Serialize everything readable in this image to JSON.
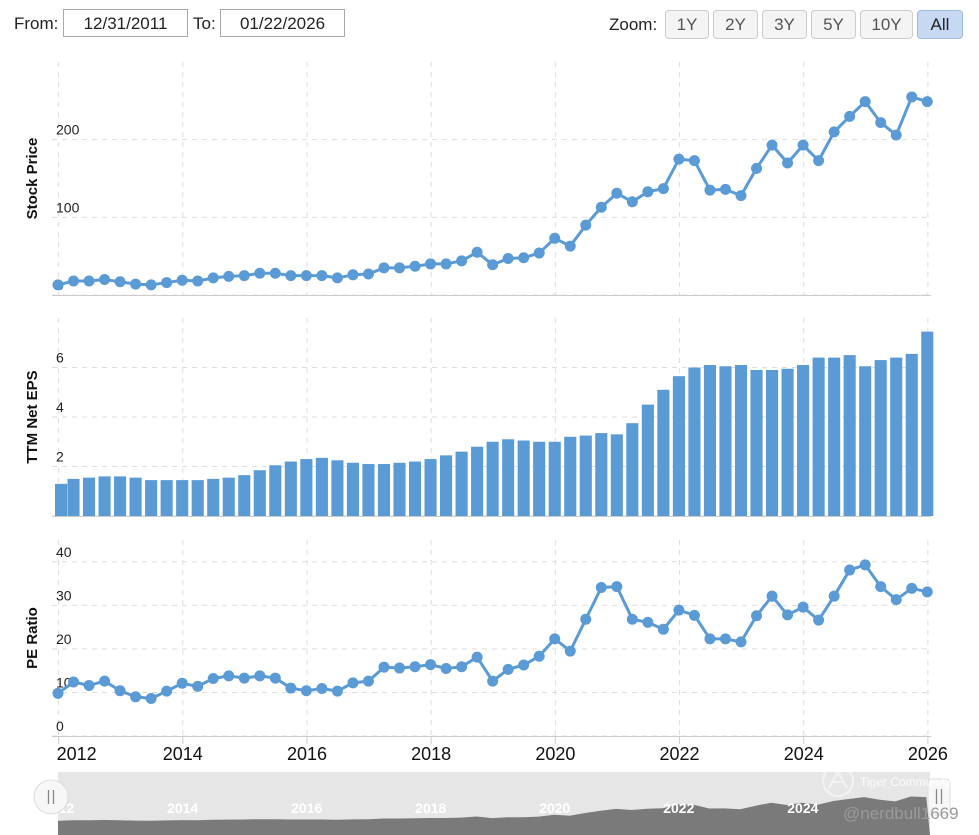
{
  "header": {
    "from_label": "From:",
    "from_value": "12/31/2011",
    "to_label": "To:",
    "to_value": "01/22/2026",
    "zoom_label": "Zoom:",
    "zoom_options": [
      "1Y",
      "2Y",
      "3Y",
      "5Y",
      "10Y",
      "All"
    ],
    "zoom_selected": "All"
  },
  "navigator": {
    "labels": [
      "2012",
      "2014",
      "2016",
      "2018",
      "2020",
      "2022",
      "2024"
    ]
  },
  "watermark": {
    "brand": "Tiger Community",
    "user": "@nerdbull1669"
  },
  "colors": {
    "series": "#5b9bd5",
    "grid": "#dddddd",
    "navigator_fill": "#e6e6e6",
    "navigator_area": "#7a7a7a",
    "active_zoom": "#c7d9f2"
  },
  "chart_data": [
    {
      "type": "line",
      "ylabel": "Stock Price",
      "ylim": [
        0,
        300
      ],
      "yticks": [
        0,
        100,
        200
      ],
      "grid": true,
      "x": [
        2011.99,
        2012.24,
        2012.49,
        2012.74,
        2012.99,
        2013.24,
        2013.49,
        2013.74,
        2013.99,
        2014.24,
        2014.49,
        2014.74,
        2014.99,
        2015.24,
        2015.49,
        2015.74,
        2015.99,
        2016.24,
        2016.49,
        2016.74,
        2016.99,
        2017.24,
        2017.49,
        2017.74,
        2017.99,
        2018.24,
        2018.49,
        2018.74,
        2018.99,
        2019.24,
        2019.49,
        2019.74,
        2019.99,
        2020.24,
        2020.49,
        2020.74,
        2020.99,
        2021.24,
        2021.49,
        2021.74,
        2021.99,
        2022.24,
        2022.49,
        2022.74,
        2022.99,
        2023.24,
        2023.49,
        2023.74,
        2023.99,
        2024.24,
        2024.49,
        2024.74,
        2024.99,
        2025.24,
        2025.49,
        2025.74,
        2025.99
      ],
      "values": [
        13,
        18,
        18,
        20,
        17,
        14,
        13,
        16,
        19,
        18,
        22,
        24,
        25,
        28,
        28,
        25,
        25,
        25,
        22,
        26,
        27,
        35,
        35,
        37,
        40,
        40,
        44,
        55,
        39,
        47,
        48,
        54,
        73,
        63,
        90,
        113,
        131,
        120,
        133,
        137,
        175,
        173,
        135,
        136,
        128,
        163,
        193,
        170,
        193,
        173,
        210,
        230,
        249,
        222,
        206,
        255,
        249
      ]
    },
    {
      "type": "bar",
      "ylabel": "TTM Net EPS",
      "ylim": [
        0,
        8
      ],
      "yticks": [
        0,
        2,
        4,
        6
      ],
      "grid": true,
      "x": [
        2011.99,
        2012.24,
        2012.49,
        2012.74,
        2012.99,
        2013.24,
        2013.49,
        2013.74,
        2013.99,
        2014.24,
        2014.49,
        2014.74,
        2014.99,
        2015.24,
        2015.49,
        2015.74,
        2015.99,
        2016.24,
        2016.49,
        2016.74,
        2016.99,
        2017.24,
        2017.49,
        2017.74,
        2017.99,
        2018.24,
        2018.49,
        2018.74,
        2018.99,
        2019.24,
        2019.49,
        2019.74,
        2019.99,
        2020.24,
        2020.49,
        2020.74,
        2020.99,
        2021.24,
        2021.49,
        2021.74,
        2021.99,
        2022.24,
        2022.49,
        2022.74,
        2022.99,
        2023.24,
        2023.49,
        2023.74,
        2023.99,
        2024.24,
        2024.49,
        2024.74,
        2024.99,
        2025.24,
        2025.49,
        2025.74,
        2025.99
      ],
      "values": [
        1.3,
        1.5,
        1.55,
        1.6,
        1.6,
        1.55,
        1.45,
        1.45,
        1.45,
        1.45,
        1.5,
        1.55,
        1.65,
        1.85,
        2.05,
        2.2,
        2.3,
        2.35,
        2.25,
        2.15,
        2.1,
        2.1,
        2.15,
        2.2,
        2.3,
        2.45,
        2.6,
        2.8,
        3.0,
        3.1,
        3.05,
        3.0,
        3.0,
        3.2,
        3.25,
        3.35,
        3.3,
        3.75,
        4.5,
        5.1,
        5.65,
        6.0,
        6.1,
        6.05,
        6.1,
        5.9,
        5.9,
        5.95,
        6.1,
        6.4,
        6.4,
        6.5,
        6.05,
        6.3,
        6.4,
        6.55,
        7.45
      ]
    },
    {
      "type": "line",
      "ylabel": "PE Ratio",
      "ylim": [
        0,
        45
      ],
      "yticks": [
        0,
        10,
        20,
        30,
        40
      ],
      "grid": true,
      "x": [
        2011.99,
        2012.24,
        2012.49,
        2012.74,
        2012.99,
        2013.24,
        2013.49,
        2013.74,
        2013.99,
        2014.24,
        2014.49,
        2014.74,
        2014.99,
        2015.24,
        2015.49,
        2015.74,
        2015.99,
        2016.24,
        2016.49,
        2016.74,
        2016.99,
        2017.24,
        2017.49,
        2017.74,
        2017.99,
        2018.24,
        2018.49,
        2018.74,
        2018.99,
        2019.24,
        2019.49,
        2019.74,
        2019.99,
        2020.24,
        2020.49,
        2020.74,
        2020.99,
        2021.24,
        2021.49,
        2021.74,
        2021.99,
        2022.24,
        2022.49,
        2022.74,
        2022.99,
        2023.24,
        2023.49,
        2023.74,
        2023.99,
        2024.24,
        2024.49,
        2024.74,
        2024.99,
        2025.24,
        2025.49,
        2025.74,
        2025.99
      ],
      "values": [
        9.8,
        12.4,
        11.6,
        12.6,
        10.4,
        9.0,
        8.6,
        10.3,
        12.1,
        11.4,
        13.2,
        13.8,
        13.3,
        13.8,
        13.3,
        11.0,
        10.4,
        10.9,
        10.3,
        12.2,
        12.6,
        15.8,
        15.6,
        15.9,
        16.4,
        15.5,
        15.9,
        18.1,
        12.6,
        15.3,
        16.3,
        18.3,
        22.3,
        19.5,
        26.8,
        34.1,
        34.3,
        26.8,
        26.1,
        24.5,
        28.9,
        27.7,
        22.3,
        22.3,
        21.6,
        27.6,
        32.1,
        27.8,
        29.6,
        26.6,
        32.1,
        38.1,
        39.3,
        34.3,
        31.3,
        33.9,
        33.1
      ]
    }
  ],
  "x_axis": {
    "xlim": [
      2011.99,
      2026.05
    ],
    "ticks": [
      "2012",
      "2014",
      "2016",
      "2018",
      "2020",
      "2022",
      "2024",
      "2026"
    ]
  }
}
